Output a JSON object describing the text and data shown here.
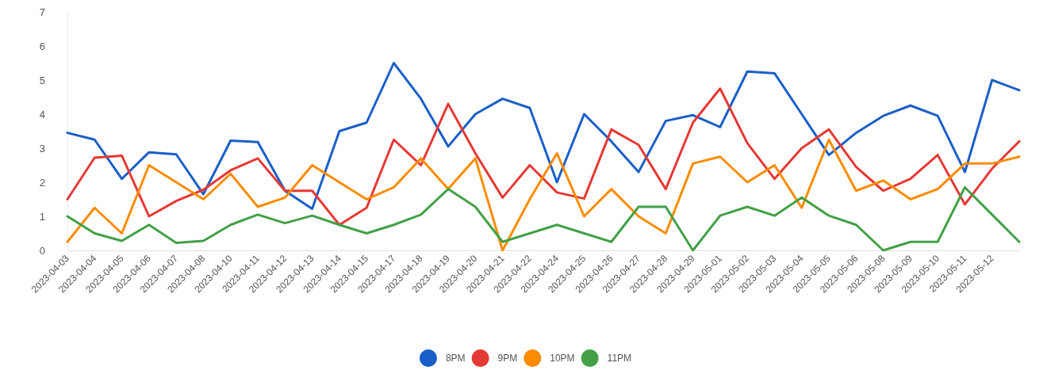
{
  "chart_data": {
    "type": "line",
    "categories": [
      "2023-04-03",
      "2023-04-04",
      "2023-04-05",
      "2023-04-06",
      "2023-04-07",
      "2023-04-08",
      "2023-04-10",
      "2023-04-11",
      "2023-04-12",
      "2023-04-13",
      "2023-04-14",
      "2023-04-15",
      "2023-04-17",
      "2023-04-18",
      "2023-04-19",
      "2023-04-20",
      "2023-04-21",
      "2023-04-22",
      "2023-04-24",
      "2023-04-25",
      "2023-04-26",
      "2023-04-27",
      "2023-04-28",
      "2023-04-29",
      "2023-05-01",
      "2023-05-02",
      "2023-05-03",
      "2023-05-04",
      "2023-05-05",
      "2023-05-06",
      "2023-05-08",
      "2023-05-09",
      "2023-05-10",
      "2023-05-11",
      "2023-05-12",
      null
    ],
    "series": [
      {
        "name": "8PM",
        "color": "#1a5fc7",
        "values": [
          3.45,
          3.25,
          2.1,
          2.88,
          2.82,
          1.65,
          3.22,
          3.18,
          1.75,
          1.22,
          3.5,
          3.75,
          5.5,
          4.45,
          3.05,
          4.0,
          4.45,
          4.18,
          2.0,
          4.0,
          3.2,
          2.3,
          3.8,
          3.97,
          3.62,
          5.25,
          5.2,
          4.0,
          2.8,
          3.45,
          3.95,
          4.25,
          3.95,
          2.3,
          5.0,
          4.7
        ]
      },
      {
        "name": "9PM",
        "color": "#e53935",
        "values": [
          1.5,
          2.72,
          2.78,
          1.0,
          1.45,
          1.78,
          2.35,
          2.7,
          1.75,
          1.75,
          0.75,
          1.25,
          3.25,
          2.5,
          4.3,
          2.85,
          1.55,
          2.5,
          1.7,
          1.52,
          3.55,
          3.1,
          1.8,
          3.75,
          4.75,
          3.15,
          2.1,
          3.0,
          3.55,
          2.45,
          1.75,
          2.1,
          2.8,
          1.35,
          2.4,
          3.2
        ]
      },
      {
        "name": "10PM",
        "color": "#fb8c00",
        "values": [
          0.25,
          1.25,
          0.5,
          2.5,
          2.0,
          1.5,
          2.25,
          1.28,
          1.55,
          2.5,
          2.0,
          1.5,
          1.85,
          2.7,
          1.8,
          2.7,
          0.0,
          1.5,
          2.85,
          1.0,
          1.8,
          1.0,
          0.5,
          2.55,
          2.75,
          2.0,
          2.5,
          1.25,
          3.25,
          1.75,
          2.05,
          1.5,
          1.8,
          2.55,
          2.55,
          2.75
        ]
      },
      {
        "name": "11PM",
        "color": "#43a047",
        "values": [
          1.0,
          0.5,
          0.28,
          0.75,
          0.22,
          0.28,
          0.75,
          1.05,
          0.8,
          1.02,
          0.75,
          0.5,
          0.75,
          1.05,
          1.8,
          1.28,
          0.25,
          0.5,
          0.75,
          0.5,
          0.25,
          1.28,
          1.28,
          0.0,
          1.02,
          1.28,
          1.02,
          1.55,
          1.02,
          0.75,
          0.0,
          0.25,
          0.25,
          1.85,
          1.05,
          0.25
        ]
      }
    ],
    "ylim": [
      0,
      7
    ],
    "yticks": [
      0,
      1,
      2,
      3,
      4,
      5,
      6,
      7
    ],
    "grid": false,
    "legend": "bottom",
    "marker": "none",
    "line_style": "solid"
  }
}
